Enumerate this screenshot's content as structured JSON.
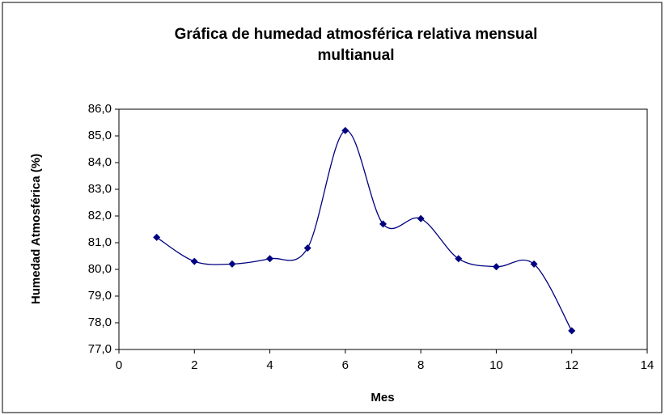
{
  "chart_data": {
    "type": "scatter",
    "title": "Gráfica de humedad atmosférica relativa mensual multianual",
    "x_label": "Mes",
    "y_label": "Humedad Atmosférica (%)",
    "x": [
      1,
      2,
      3,
      4,
      5,
      6,
      7,
      8,
      9,
      10,
      11,
      12
    ],
    "series": [
      {
        "name": "Humedad",
        "color": "#000080",
        "values": [
          81.2,
          80.3,
          80.2,
          80.4,
          80.8,
          85.2,
          81.7,
          81.9,
          80.4,
          80.1,
          80.2,
          77.7
        ]
      }
    ],
    "smooth": true,
    "xlim": [
      0,
      14
    ],
    "xticks": [
      0,
      2,
      4,
      6,
      8,
      10,
      12,
      14
    ],
    "ylim": [
      77,
      86
    ],
    "yticks": [
      {
        "value": 77,
        "label": "77,0"
      },
      {
        "value": 78,
        "label": "78,0"
      },
      {
        "value": 79,
        "label": "79,0"
      },
      {
        "value": 80,
        "label": "80,0"
      },
      {
        "value": 81,
        "label": "81,0"
      },
      {
        "value": 82,
        "label": "82,0"
      },
      {
        "value": 83,
        "label": "83,0"
      },
      {
        "value": 84,
        "label": "84,0"
      },
      {
        "value": 85,
        "label": "85,0"
      },
      {
        "value": 86,
        "label": "86,0"
      }
    ],
    "grid": false
  }
}
